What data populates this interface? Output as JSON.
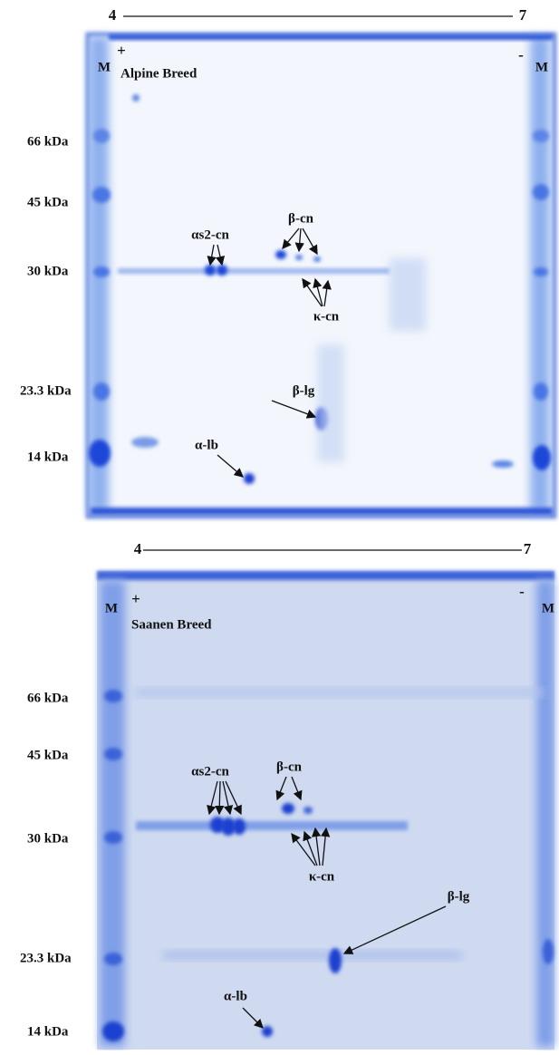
{
  "panels": [
    {
      "ph_start": "4",
      "ph_end": "7",
      "plus": "+",
      "minus": "-",
      "marker_left": "M",
      "marker_right": "M",
      "breed": "Alpine Breed",
      "mw_labels": [
        "66  kDa",
        "45  kDa",
        "30  kDa",
        "23.3  kDa",
        "14  kDa"
      ],
      "proteins": [
        "αs2-cn",
        "β-cn",
        "κ-cn",
        "β-lg",
        "α-lb"
      ]
    },
    {
      "ph_start": "4",
      "ph_end": "7",
      "plus": "+",
      "minus": "-",
      "marker_left": "M",
      "marker_right": "M",
      "breed": "Saanen Breed",
      "mw_labels": [
        "66 kDa",
        "45  kDa",
        "30  kDa",
        "23.3 kDa",
        "14  kDa"
      ],
      "proteins": [
        "αs2-cn",
        "β-cn",
        "κ-cn",
        "β-lg",
        "α-lb"
      ]
    }
  ]
}
